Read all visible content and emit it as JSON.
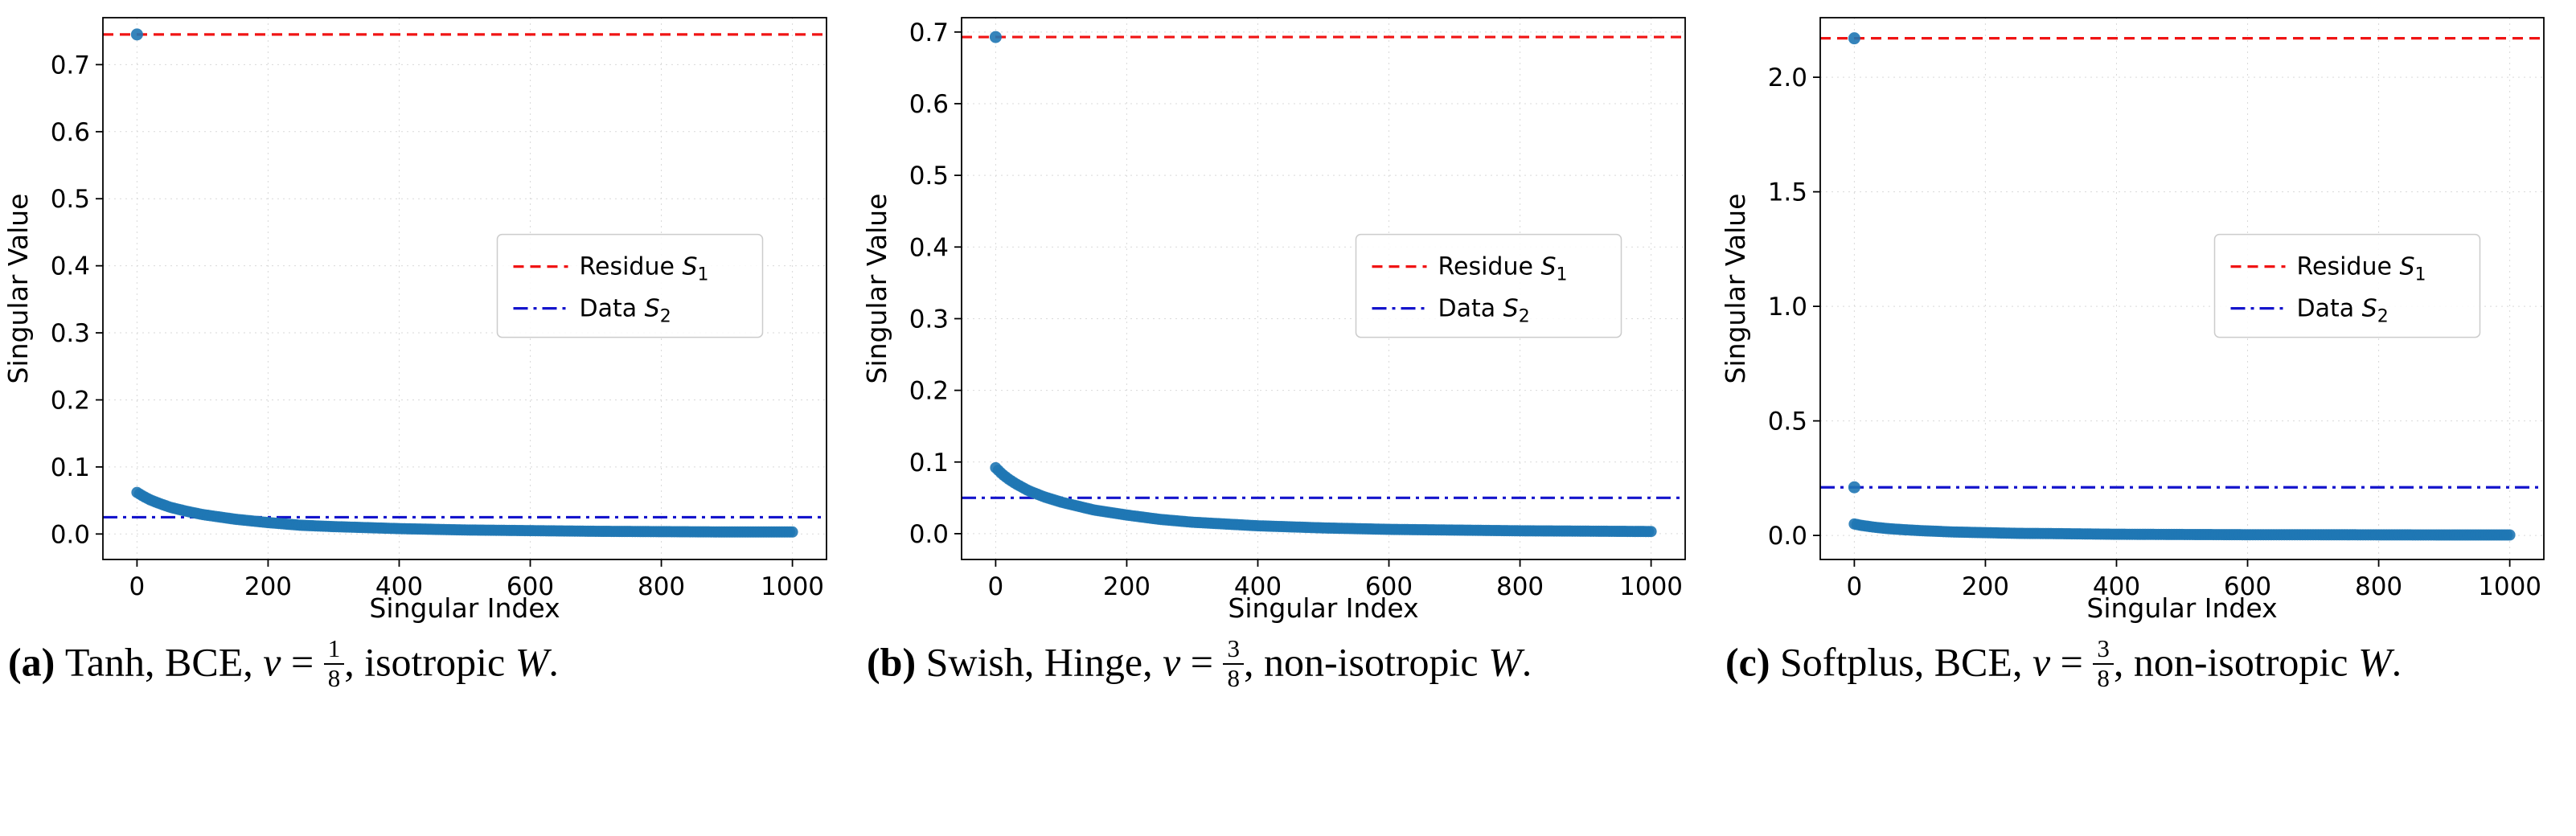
{
  "styles": {
    "background": "#ffffff",
    "scatter_color": "#1f77b4",
    "residue_color": "#f01414",
    "data_color": "#1414cc",
    "grid_color": "#d9d9d9",
    "spine_color": "#000000",
    "text_color": "#000000",
    "legend_border": "#cccccc"
  },
  "legend": {
    "items": [
      {
        "name": "residue",
        "label": "Residue ",
        "sym": "S",
        "sub": "1"
      },
      {
        "name": "data",
        "label": "Data ",
        "sym": "S",
        "sub": "2"
      }
    ]
  },
  "chart_data": [
    {
      "id": "a",
      "type": "scatter",
      "xlabel": "Singular Index",
      "ylabel": "Singular Value",
      "xlim": [
        -52,
        1052
      ],
      "ylim": [
        -0.038,
        0.77
      ],
      "xticks": [
        0,
        200,
        400,
        600,
        800,
        1000
      ],
      "xtick_labels": [
        "0",
        "200",
        "400",
        "600",
        "800",
        "1000"
      ],
      "yticks": [
        0.0,
        0.1,
        0.2,
        0.3,
        0.4,
        0.5,
        0.6,
        0.7
      ],
      "ytick_labels": [
        "0.0",
        "0.1",
        "0.2",
        "0.3",
        "0.4",
        "0.5",
        "0.6",
        "0.7"
      ],
      "reference_lines": [
        {
          "name": "residue_s1",
          "label": "Residue S_1",
          "value": 0.745
        },
        {
          "name": "data_s2",
          "label": "Data S_2",
          "value": 0.025
        }
      ],
      "outlier_points": [
        [
          0,
          0.745
        ]
      ],
      "n_singular_values": 1000,
      "bulk_x": [
        0,
        10,
        20,
        30,
        50,
        75,
        100,
        150,
        200,
        250,
        300,
        400,
        500,
        600,
        700,
        800,
        900,
        1000
      ],
      "bulk_y": [
        0.062,
        0.056,
        0.051,
        0.047,
        0.04,
        0.034,
        0.029,
        0.022,
        0.017,
        0.013,
        0.011,
        0.008,
        0.006,
        0.005,
        0.004,
        0.0035,
        0.003,
        0.003
      ],
      "caption": {
        "tag": "(a) ",
        "seg1": "Tanh, BCE, ",
        "nu": "ν",
        "eq": " = ",
        "num": "1",
        "den": "8",
        "seg2": ", isotropic ",
        "w": "W",
        "end": "."
      }
    },
    {
      "id": "b",
      "type": "scatter",
      "xlabel": "Singular Index",
      "ylabel": "Singular Value",
      "xlim": [
        -52,
        1052
      ],
      "ylim": [
        -0.036,
        0.72
      ],
      "xticks": [
        0,
        200,
        400,
        600,
        800,
        1000
      ],
      "xtick_labels": [
        "0",
        "200",
        "400",
        "600",
        "800",
        "1000"
      ],
      "yticks": [
        0.0,
        0.1,
        0.2,
        0.3,
        0.4,
        0.5,
        0.6,
        0.7
      ],
      "ytick_labels": [
        "0.0",
        "0.1",
        "0.2",
        "0.3",
        "0.4",
        "0.5",
        "0.6",
        "0.7"
      ],
      "reference_lines": [
        {
          "name": "residue_s1",
          "label": "Residue S_1",
          "value": 0.693
        },
        {
          "name": "data_s2",
          "label": "Data S_2",
          "value": 0.05
        }
      ],
      "outlier_points": [
        [
          0,
          0.693
        ]
      ],
      "n_singular_values": 1000,
      "bulk_x": [
        0,
        10,
        20,
        30,
        50,
        75,
        100,
        150,
        200,
        250,
        300,
        400,
        500,
        600,
        700,
        800,
        900,
        1000
      ],
      "bulk_y": [
        0.092,
        0.083,
        0.076,
        0.07,
        0.06,
        0.051,
        0.044,
        0.033,
        0.026,
        0.02,
        0.016,
        0.011,
        0.008,
        0.006,
        0.005,
        0.004,
        0.0035,
        0.003
      ],
      "caption": {
        "tag": "(b) ",
        "seg1": "Swish, Hinge, ",
        "nu": "ν",
        "eq": " = ",
        "num": "3",
        "den": "8",
        "seg2": ", non-isotropic ",
        "w": "W",
        "end": "."
      }
    },
    {
      "id": "c",
      "type": "scatter",
      "xlabel": "Singular Index",
      "ylabel": "Singular Value",
      "xlim": [
        -52,
        1052
      ],
      "ylim": [
        -0.105,
        2.26
      ],
      "xticks": [
        0,
        200,
        400,
        600,
        800,
        1000
      ],
      "xtick_labels": [
        "0",
        "200",
        "400",
        "600",
        "800",
        "1000"
      ],
      "yticks": [
        0.0,
        0.5,
        1.0,
        1.5,
        2.0
      ],
      "ytick_labels": [
        "0.0",
        "0.5",
        "1.0",
        "1.5",
        "2.0"
      ],
      "reference_lines": [
        {
          "name": "residue_s1",
          "label": "Residue S_1",
          "value": 2.17
        },
        {
          "name": "data_s2",
          "label": "Data S_2",
          "value": 0.21
        }
      ],
      "outlier_points": [
        [
          0,
          2.17
        ],
        [
          0,
          0.21
        ]
      ],
      "n_singular_values": 1000,
      "bulk_x": [
        0,
        10,
        20,
        30,
        50,
        75,
        100,
        150,
        200,
        250,
        300,
        400,
        500,
        600,
        700,
        800,
        900,
        1000
      ],
      "bulk_y": [
        0.05,
        0.044,
        0.04,
        0.036,
        0.03,
        0.025,
        0.021,
        0.015,
        0.012,
        0.009,
        0.008,
        0.005,
        0.004,
        0.003,
        0.003,
        0.0025,
        0.002,
        0.002
      ],
      "caption": {
        "tag": "(c) ",
        "seg1": "Softplus, BCE, ",
        "nu": "ν",
        "eq": " = ",
        "num": "3",
        "den": "8",
        "seg2": ", non-isotropic ",
        "w": "W",
        "end": "."
      }
    }
  ]
}
